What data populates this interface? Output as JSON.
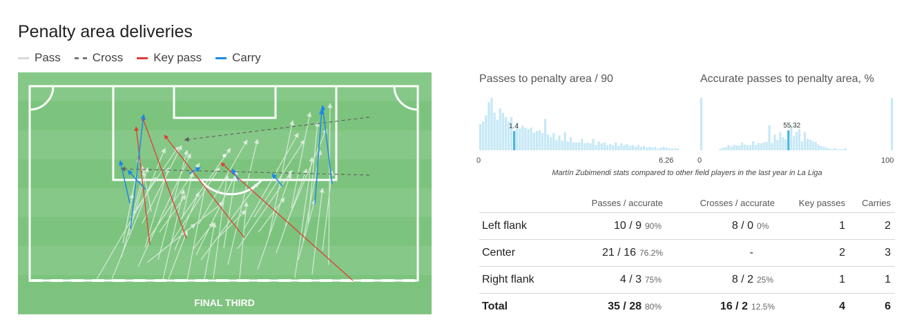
{
  "title": "Penalty area deliveries",
  "legend": {
    "pass": "Pass",
    "cross": "Cross",
    "key_pass": "Key pass",
    "carry": "Carry"
  },
  "colors": {
    "pitch_dark": "#7cc47e",
    "pitch_light": "#86c888",
    "pass": "#e6f0e6",
    "cross": "#616161",
    "key_pass": "#e53935",
    "carry": "#1e88e5",
    "hist_bar": "#c6e8f6",
    "hist_highlight": "#45b4e0"
  },
  "pitch": {
    "zone_label": "FINAL THIRD"
  },
  "chart_data": [
    {
      "type": "bar",
      "title": "Passes to penalty area / 90",
      "xlim": [
        0,
        6.26
      ],
      "x_min_label": "0",
      "x_max_label": "6.26",
      "highlight_value": 1.4,
      "highlight_label": "1.4",
      "highlight_index": 12,
      "values": [
        30,
        33,
        40,
        55,
        60,
        43,
        35,
        48,
        43,
        38,
        33,
        38,
        22,
        32,
        25,
        28,
        26,
        24,
        26,
        20,
        22,
        23,
        20,
        36,
        18,
        15,
        20,
        12,
        17,
        11,
        21,
        10,
        15,
        9,
        9,
        9,
        13,
        8,
        9,
        8,
        13,
        6,
        10,
        8,
        9,
        6,
        7,
        6,
        9,
        5,
        8,
        6,
        7,
        5,
        6,
        4,
        6,
        4,
        5,
        3,
        4,
        3,
        4,
        2,
        3,
        4,
        3,
        2,
        2,
        2,
        2
      ]
    },
    {
      "type": "bar",
      "title": "Accurate passes to penalty area, %",
      "xlim": [
        0,
        100
      ],
      "x_min_label": "0",
      "x_max_label": "100",
      "highlight_value": 55.32,
      "highlight_label": "55.32",
      "highlight_index": 32,
      "values": [
        100,
        0,
        0,
        0,
        0,
        0,
        0,
        3,
        5,
        6,
        10,
        7,
        10,
        9,
        9,
        15,
        11,
        10,
        10,
        17,
        10,
        14,
        13,
        15,
        16,
        48,
        14,
        30,
        20,
        35,
        25,
        21,
        38,
        48,
        27,
        35,
        40,
        17,
        35,
        22,
        20,
        17,
        16,
        11,
        8,
        7,
        5,
        3,
        2,
        4,
        2,
        2,
        2,
        4,
        0,
        0,
        0,
        0,
        0,
        0,
        0,
        0,
        0,
        0,
        0,
        0,
        0,
        0,
        0,
        0,
        100
      ]
    }
  ],
  "caption": "Martín Zubimendi stats compared to other field players in the last year in La Liga",
  "table": {
    "headers": [
      "",
      "Passes / accurate",
      "Crosses / accurate",
      "Key passes",
      "Carries"
    ],
    "rows": [
      {
        "zone": "Left flank",
        "passes": "10 / 9",
        "passes_pct": "90%",
        "crosses": "8 / 0",
        "crosses_pct": "0%",
        "key_passes": "1",
        "carries": "2"
      },
      {
        "zone": "Center",
        "passes": "21 / 16",
        "passes_pct": "76.2%",
        "crosses": "-",
        "crosses_pct": "",
        "key_passes": "2",
        "carries": "3"
      },
      {
        "zone": "Right flank",
        "passes": "4 / 3",
        "passes_pct": "75%",
        "crosses": "8 / 2",
        "crosses_pct": "25%",
        "key_passes": "1",
        "carries": "1"
      }
    ],
    "total": {
      "zone": "Total",
      "passes": "35 / 28",
      "passes_pct": "80%",
      "crosses": "16 / 2",
      "crosses_pct": "12.5%",
      "key_passes": "4",
      "carries": "6"
    }
  }
}
